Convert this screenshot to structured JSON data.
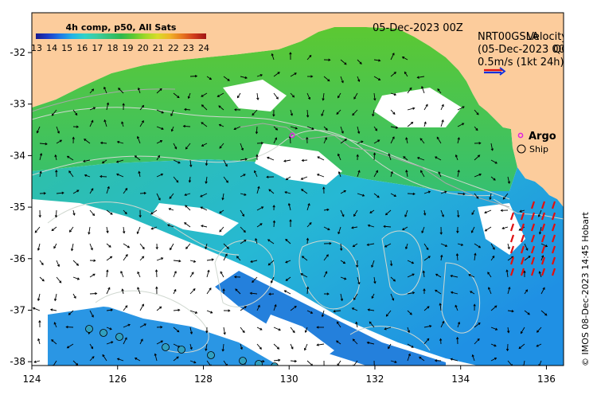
{
  "colorbar": {
    "title": "4h comp, p50, All Sats",
    "ticks": [
      "13",
      "14",
      "15",
      "16",
      "17",
      "18",
      "19",
      "20",
      "21",
      "22",
      "23",
      "24"
    ],
    "colors": [
      "#1a1a8c",
      "#1e3cc8",
      "#1f78e6",
      "#22b4e6",
      "#30d2c8",
      "#3ccca0",
      "#36c278",
      "#2eb84e",
      "#5cc832",
      "#a0d828",
      "#d8dc28",
      "#f0b428",
      "#e87820",
      "#d03c1c",
      "#a01414"
    ]
  },
  "date_label": "05-Dec-2023 00Z",
  "legend": {
    "velocity_title": "NRT00GSLA",
    "velocity_overlap": "Velocity",
    "velocity_date": "(05-Dec-2023 00Z)",
    "velocity_flag": "QC",
    "velocity_scale": "0.5m/s (1kt 24h)",
    "argo_label": "Argo",
    "ship_label": "Ship"
  },
  "credit": "© IMOS 08-Dec-2023 14:45 Hobart",
  "axes": {
    "x_ticks": [
      "124",
      "126",
      "128",
      "130",
      "132",
      "134",
      "136"
    ],
    "y_ticks": [
      "-32",
      "-33",
      "-34",
      "-35",
      "-36",
      "-37",
      "-38"
    ]
  },
  "colors": {
    "land": "#fccc9c",
    "arrow": "#000000",
    "contour": "#d0d8d0",
    "red_arrows": "#e01010",
    "argo": "#e020e0",
    "ship_fill": "#30a0c0"
  }
}
